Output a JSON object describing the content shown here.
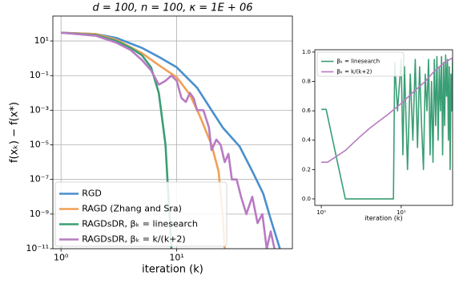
{
  "chart_data": [
    {
      "type": "line",
      "title": "d = 100,  n = 100,  κ = 1E + 06",
      "xlabel": "iteration (k)",
      "ylabel": "f(xₖ) − f(x*)",
      "xscale": "log",
      "yscale": "log",
      "grid": true,
      "legend": "lower left",
      "xlim": [
        0.85,
        100
      ],
      "ylim": [
        1e-11,
        275
      ],
      "xticks": [
        {
          "value": 1,
          "label": "10⁰"
        },
        {
          "value": 10,
          "label": "10¹"
        }
      ],
      "yticks": [
        {
          "value": 1e-11,
          "label": "10⁻¹¹"
        },
        {
          "value": 1e-09,
          "label": "10⁻⁹"
        },
        {
          "value": 1e-07,
          "label": "10⁻⁷"
        },
        {
          "value": 1e-05,
          "label": "10⁻⁵"
        },
        {
          "value": 0.001,
          "label": "10⁻³"
        },
        {
          "value": 0.1,
          "label": "10⁻¹"
        },
        {
          "value": 10,
          "label": "10¹"
        }
      ],
      "series": [
        {
          "name": "RGD",
          "color": "#4a8fcd",
          "x": [
            1,
            2,
            3,
            5,
            7,
            10,
            15,
            20,
            25,
            35,
            45,
            56,
            65,
            78
          ],
          "values": [
            30,
            25,
            15,
            4,
            1.2,
            0.3,
            0.02,
            0.001,
            0.0001,
            8e-06,
            3e-07,
            1.5e-08,
            5e-10,
            1e-11
          ]
        },
        {
          "name": "RAGD (Zhang and Sra)",
          "color": "#f0a055",
          "x": [
            1,
            2,
            3,
            5,
            7,
            10,
            13,
            16,
            20,
            23,
            25,
            26
          ],
          "values": [
            30,
            25,
            12,
            2,
            0.4,
            0.08,
            0.008,
            0.0004,
            1e-05,
            3e-07,
            1e-09,
            1e-11
          ]
        },
        {
          "name": "RAGDsDR, βₖ = linesearch",
          "color": "#3a9e74",
          "x": [
            1,
            2,
            3,
            4,
            5,
            6,
            7,
            8,
            9
          ],
          "values": [
            30,
            22,
            10,
            4,
            1.5,
            0.3,
            0.01,
            1e-05,
            1e-11
          ]
        },
        {
          "name": "RAGDsDR, βₖ = k/(k+2)",
          "color": "#b87bc2",
          "x": [
            1,
            2,
            3,
            4,
            5,
            6,
            7,
            8,
            9,
            10,
            11,
            12,
            13,
            14,
            15,
            17,
            19,
            20,
            22,
            24,
            26,
            28,
            30,
            33,
            36,
            40,
            45,
            50,
            55,
            60,
            65,
            70
          ],
          "values": [
            30,
            20,
            8,
            3,
            0.8,
            0.2,
            0.03,
            0.05,
            0.1,
            0.05,
            0.005,
            0.003,
            0.01,
            0.005,
            0.001,
            0.001,
            0.0001,
            5e-06,
            2e-05,
            1e-05,
            1e-06,
            3e-06,
            1e-07,
            1e-07,
            1e-08,
            1e-09,
            1e-08,
            3e-10,
            1e-09,
            1e-11,
            1e-10,
            1e-11
          ]
        }
      ]
    },
    {
      "type": "line",
      "xlabel": "iteration (k)",
      "xscale": "log",
      "grid": false,
      "legend": "upper left",
      "xlim": [
        0.83,
        44
      ],
      "ylim": [
        -0.044,
        1.016
      ],
      "xticks": [
        {
          "value": 1,
          "label": "10⁰"
        },
        {
          "value": 10,
          "label": "10¹"
        }
      ],
      "yticks": [
        {
          "value": 0,
          "label": "0.0"
        },
        {
          "value": 0.2,
          "label": "0.2"
        },
        {
          "value": 0.4,
          "label": "0.4"
        },
        {
          "value": 0.6,
          "label": "0.6"
        },
        {
          "value": 0.8,
          "label": "0.8"
        },
        {
          "value": 1,
          "label": "1.0"
        }
      ],
      "series": [
        {
          "name": "βₖ = linesearch",
          "color": "#3a9e74",
          "x": [
            1,
            1.15,
            2,
            8,
            8.3,
            9,
            10,
            10.5,
            11,
            12,
            13,
            14,
            15,
            16,
            17,
            18,
            19,
            20,
            21,
            22,
            23,
            24,
            25,
            26,
            27,
            28,
            29,
            30,
            31,
            32,
            33,
            34,
            35,
            36,
            37,
            38,
            39,
            40,
            41,
            42,
            43,
            44
          ],
          "values": [
            0.61,
            0.61,
            0,
            0,
            0.93,
            0.6,
            0.95,
            0.3,
            0.9,
            0.2,
            0.85,
            0.4,
            0.95,
            0.35,
            0.9,
            0.5,
            0.2,
            0.85,
            0.6,
            0.95,
            0.3,
            0.8,
            0.25,
            0.95,
            0.5,
            0.97,
            0.4,
            0.9,
            0.6,
            0.97,
            0.3,
            0.93,
            0.5,
            0.98,
            0.7,
            0.95,
            0.4,
            0.9,
            0.2,
            0.85,
            0.6,
            0.95
          ]
        },
        {
          "name": "βₖ = k/(k+2)",
          "color": "#b87bc2",
          "x": [
            1,
            1.2,
            2,
            3,
            4,
            5,
            7,
            10,
            15,
            20,
            25,
            30,
            35,
            44
          ],
          "values": [
            0.25,
            0.25,
            0.33,
            0.42,
            0.48,
            0.52,
            0.58,
            0.65,
            0.74,
            0.8,
            0.86,
            0.9,
            0.93,
            0.96
          ]
        }
      ]
    }
  ]
}
